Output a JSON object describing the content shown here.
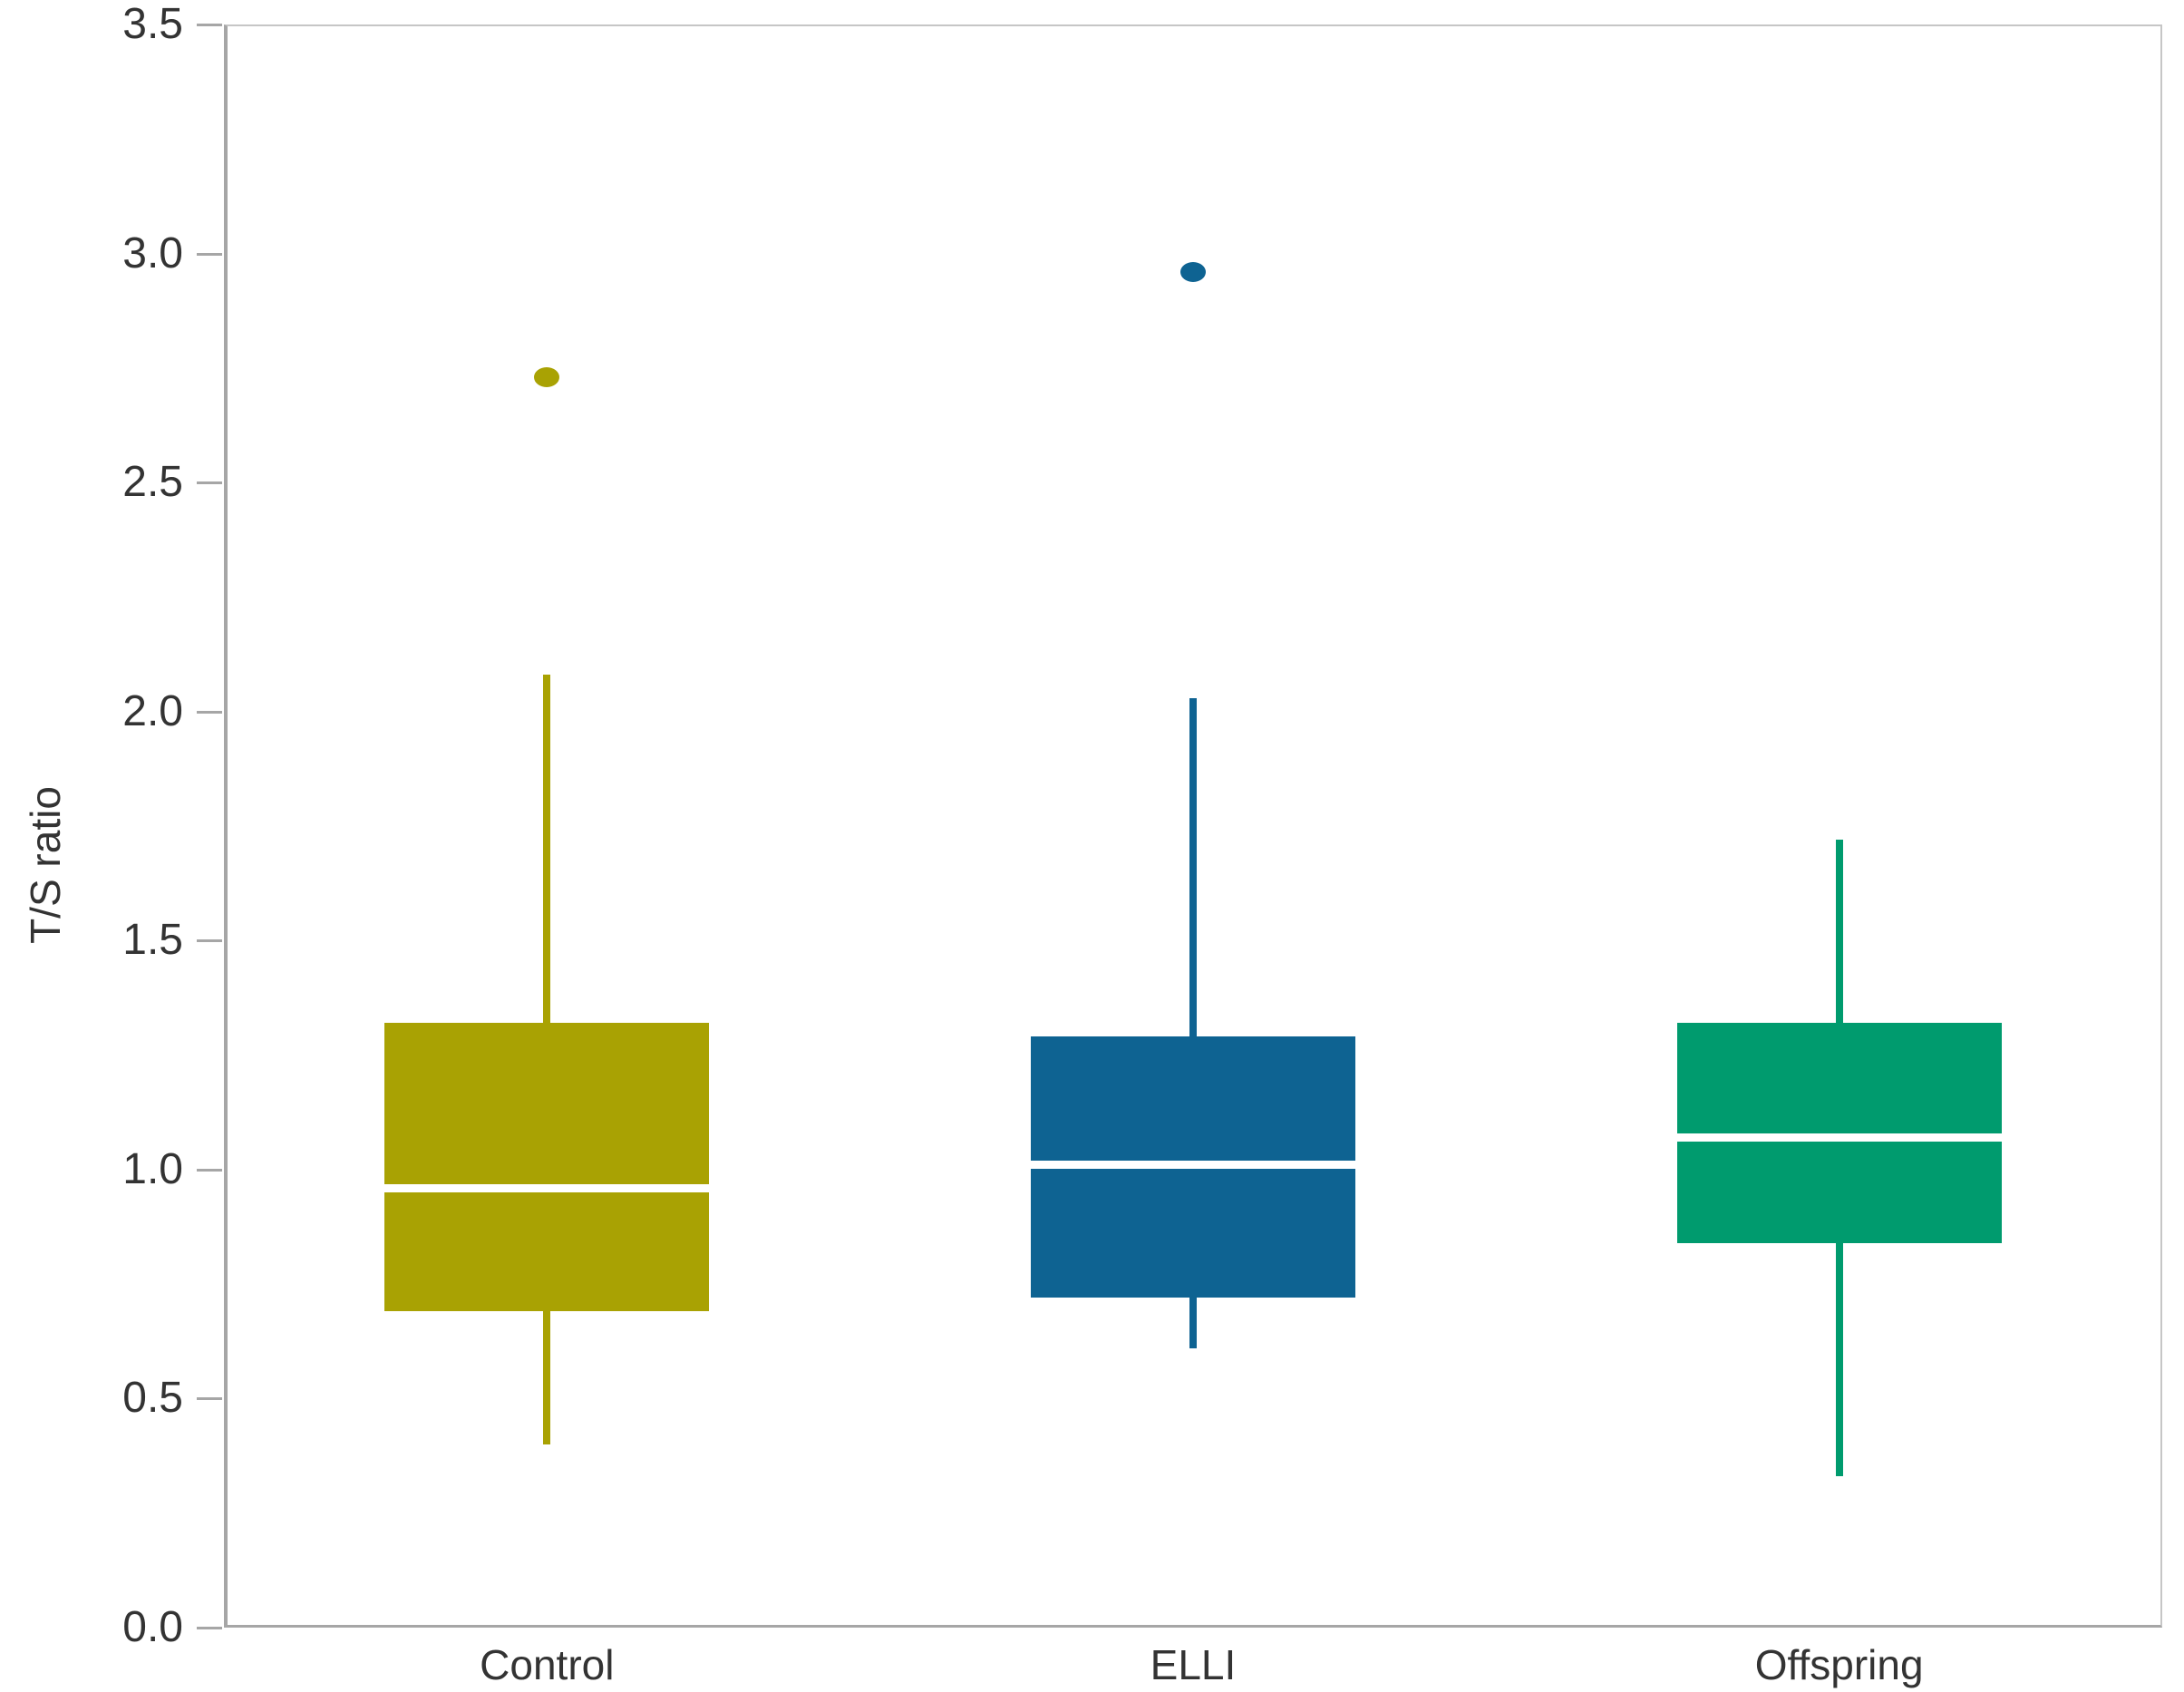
{
  "chart_data": {
    "type": "boxplot",
    "title": "",
    "xlabel": "",
    "ylabel": "T/S ratio",
    "ylim": [
      0.0,
      3.5
    ],
    "yticks": [
      0.0,
      0.5,
      1.0,
      1.5,
      2.0,
      2.5,
      3.0,
      3.5
    ],
    "ytick_format_decimals": 1,
    "grid": false,
    "legend": "none",
    "categories": [
      "Control",
      "ELLI",
      "Offspring"
    ],
    "series": [
      {
        "name": "Control",
        "color": "#a9a203",
        "whisker_low": 0.4,
        "q1": 0.69,
        "median": 0.96,
        "q3": 1.32,
        "whisker_high": 2.08,
        "outliers": [
          2.73
        ]
      },
      {
        "name": "ELLI",
        "color": "#0e6392",
        "whisker_low": 0.61,
        "q1": 0.72,
        "median": 1.01,
        "q3": 1.29,
        "whisker_high": 2.03,
        "outliers": [
          2.96
        ]
      },
      {
        "name": "Offspring",
        "color": "#009b6e",
        "whisker_low": 0.33,
        "q1": 0.84,
        "median": 1.07,
        "q3": 1.32,
        "whisker_high": 1.72,
        "outliers": []
      }
    ],
    "median_line_color": "#ffffff",
    "axis_color": "#a6a6a6",
    "text_color": "#333333",
    "background_color": "#ffffff"
  }
}
